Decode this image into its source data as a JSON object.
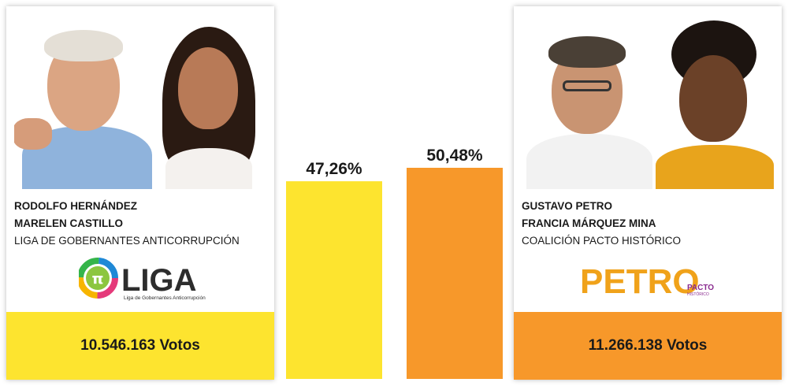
{
  "candidates": {
    "left": {
      "president": "RODOLFO HERNÁNDEZ",
      "vice_president": "MARELEN CASTILLO",
      "party": "LIGA DE GOBERNANTES ANTICORRUPCIÓN",
      "logo_text": "LIGA",
      "logo_symbol": "π",
      "logo_subtitle": "Liga de Gobernantes Anticorrupción",
      "votes": "10.546.163 Votos",
      "color": "#fde42f"
    },
    "right": {
      "president": "GUSTAVO PETRO",
      "vice_president": "FRANCIA MÁRQUEZ MINA",
      "party": "COALICIÓN PACTO HISTÓRICO",
      "logo_text": "PETRO",
      "logo_subtext": "PACTO",
      "logo_subtext2": "HISTÓRICO",
      "votes": "11.266.138 Votos",
      "color": "#f7982a"
    }
  },
  "chart_data": {
    "type": "bar",
    "categories": [
      "RODOLFO HERNÁNDEZ",
      "GUSTAVO PETRO"
    ],
    "values": [
      47.26,
      50.48
    ],
    "value_labels": [
      "47,26%",
      "50,48%"
    ],
    "colors": [
      "#fde42f",
      "#f7982a"
    ],
    "ylim": [
      0,
      55
    ],
    "grid": false,
    "legend": "none"
  }
}
